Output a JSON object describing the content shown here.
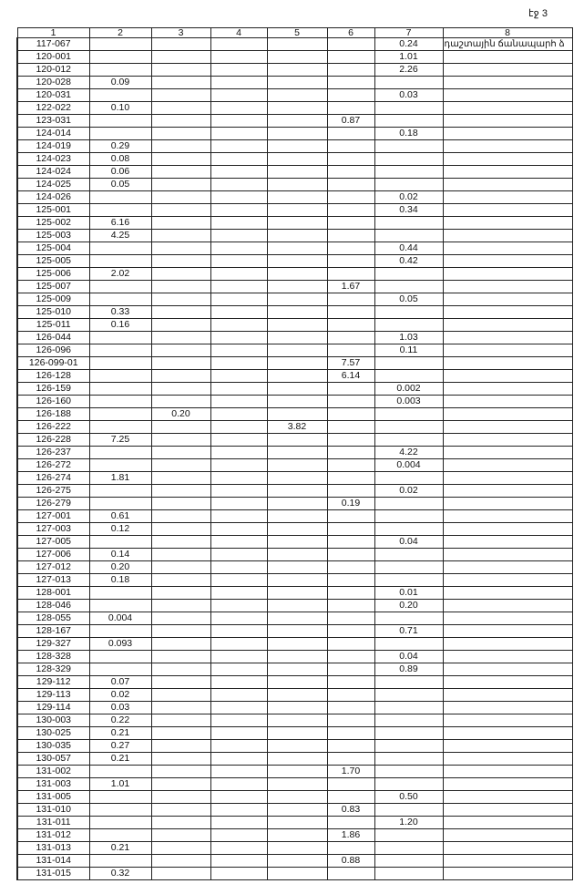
{
  "page_label": "էջ 3",
  "headers": [
    "1",
    "2",
    "3",
    "4",
    "5",
    "6",
    "7",
    "8"
  ],
  "rows": [
    [
      "117-067",
      "",
      "",
      "",
      "",
      "",
      "0.24",
      "դաշտային ճանապարհ ձ"
    ],
    [
      "120-001",
      "",
      "",
      "",
      "",
      "",
      "1.01",
      ""
    ],
    [
      "120-012",
      "",
      "",
      "",
      "",
      "",
      "2.26",
      ""
    ],
    [
      "120-028",
      "0.09",
      "",
      "",
      "",
      "",
      "",
      ""
    ],
    [
      "120-031",
      "",
      "",
      "",
      "",
      "",
      "0.03",
      ""
    ],
    [
      "122-022",
      "0.10",
      "",
      "",
      "",
      "",
      "",
      ""
    ],
    [
      "123-031",
      "",
      "",
      "",
      "",
      "0.87",
      "",
      ""
    ],
    [
      "124-014",
      "",
      "",
      "",
      "",
      "",
      "0.18",
      ""
    ],
    [
      "124-019",
      "0.29",
      "",
      "",
      "",
      "",
      "",
      ""
    ],
    [
      "124-023",
      "0.08",
      "",
      "",
      "",
      "",
      "",
      ""
    ],
    [
      "124-024",
      "0.06",
      "",
      "",
      "",
      "",
      "",
      ""
    ],
    [
      "124-025",
      "0.05",
      "",
      "",
      "",
      "",
      "",
      ""
    ],
    [
      "124-026",
      "",
      "",
      "",
      "",
      "",
      "0.02",
      ""
    ],
    [
      "125-001",
      "",
      "",
      "",
      "",
      "",
      "0.34",
      ""
    ],
    [
      "125-002",
      "6.16",
      "",
      "",
      "",
      "",
      "",
      ""
    ],
    [
      "125-003",
      "4.25",
      "",
      "",
      "",
      "",
      "",
      ""
    ],
    [
      "125-004",
      "",
      "",
      "",
      "",
      "",
      "0.44",
      ""
    ],
    [
      "125-005",
      "",
      "",
      "",
      "",
      "",
      "0.42",
      ""
    ],
    [
      "125-006",
      "2.02",
      "",
      "",
      "",
      "",
      "",
      ""
    ],
    [
      "125-007",
      "",
      "",
      "",
      "",
      "1.67",
      "",
      ""
    ],
    [
      "125-009",
      "",
      "",
      "",
      "",
      "",
      "0.05",
      ""
    ],
    [
      "125-010",
      "0.33",
      "",
      "",
      "",
      "",
      "",
      ""
    ],
    [
      "125-011",
      "0.16",
      "",
      "",
      "",
      "",
      "",
      ""
    ],
    [
      "126-044",
      "",
      "",
      "",
      "",
      "",
      "1.03",
      ""
    ],
    [
      "126-096",
      "",
      "",
      "",
      "",
      "",
      "0.11",
      ""
    ],
    [
      "126-099-01",
      "",
      "",
      "",
      "",
      "7.57",
      "",
      ""
    ],
    [
      "126-128",
      "",
      "",
      "",
      "",
      "6.14",
      "",
      ""
    ],
    [
      "126-159",
      "",
      "",
      "",
      "",
      "",
      "0.002",
      ""
    ],
    [
      "126-160",
      "",
      "",
      "",
      "",
      "",
      "0.003",
      ""
    ],
    [
      "126-188",
      "",
      "0.20",
      "",
      "",
      "",
      "",
      ""
    ],
    [
      "126-222",
      "",
      "",
      "",
      "3.82",
      "",
      "",
      ""
    ],
    [
      "126-228",
      "7.25",
      "",
      "",
      "",
      "",
      "",
      ""
    ],
    [
      "126-237",
      "",
      "",
      "",
      "",
      "",
      "4.22",
      ""
    ],
    [
      "126-272",
      "",
      "",
      "",
      "",
      "",
      "0.004",
      ""
    ],
    [
      "126-274",
      "1.81",
      "",
      "",
      "",
      "",
      "",
      ""
    ],
    [
      "126-275",
      "",
      "",
      "",
      "",
      "",
      "0.02",
      ""
    ],
    [
      "126-279",
      "",
      "",
      "",
      "",
      "0.19",
      "",
      ""
    ],
    [
      "127-001",
      "0.61",
      "",
      "",
      "",
      "",
      "",
      ""
    ],
    [
      "127-003",
      "0.12",
      "",
      "",
      "",
      "",
      "",
      ""
    ],
    [
      "127-005",
      "",
      "",
      "",
      "",
      "",
      "0.04",
      ""
    ],
    [
      "127-006",
      "0.14",
      "",
      "",
      "",
      "",
      "",
      ""
    ],
    [
      "127-012",
      "0.20",
      "",
      "",
      "",
      "",
      "",
      ""
    ],
    [
      "127-013",
      "0.18",
      "",
      "",
      "",
      "",
      "",
      ""
    ],
    [
      "128-001",
      "",
      "",
      "",
      "",
      "",
      "0.01",
      ""
    ],
    [
      "128-046",
      "",
      "",
      "",
      "",
      "",
      "0.20",
      ""
    ],
    [
      "128-055",
      "0.004",
      "",
      "",
      "",
      "",
      "",
      ""
    ],
    [
      "128-167",
      "",
      "",
      "",
      "",
      "",
      "0.71",
      ""
    ],
    [
      "129-327",
      "0.093",
      "",
      "",
      "",
      "",
      "",
      ""
    ],
    [
      "128-328",
      "",
      "",
      "",
      "",
      "",
      "0.04",
      ""
    ],
    [
      "128-329",
      "",
      "",
      "",
      "",
      "",
      "0.89",
      ""
    ],
    [
      "129-112",
      "0.07",
      "",
      "",
      "",
      "",
      "",
      ""
    ],
    [
      "129-113",
      "0.02",
      "",
      "",
      "",
      "",
      "",
      ""
    ],
    [
      "129-114",
      "0.03",
      "",
      "",
      "",
      "",
      "",
      ""
    ],
    [
      "130-003",
      "0.22",
      "",
      "",
      "",
      "",
      "",
      ""
    ],
    [
      "130-025",
      "0.21",
      "",
      "",
      "",
      "",
      "",
      ""
    ],
    [
      "130-035",
      "0.27",
      "",
      "",
      "",
      "",
      "",
      ""
    ],
    [
      "130-057",
      "0.21",
      "",
      "",
      "",
      "",
      "",
      ""
    ],
    [
      "131-002",
      "",
      "",
      "",
      "",
      "1.70",
      "",
      ""
    ],
    [
      "131-003",
      "1.01",
      "",
      "",
      "",
      "",
      "",
      ""
    ],
    [
      "131-005",
      "",
      "",
      "",
      "",
      "",
      "0.50",
      ""
    ],
    [
      "131-010",
      "",
      "",
      "",
      "",
      "0.83",
      "",
      ""
    ],
    [
      "131-011",
      "",
      "",
      "",
      "",
      "",
      "1.20",
      ""
    ],
    [
      "131-012",
      "",
      "",
      "",
      "",
      "1.86",
      "",
      ""
    ],
    [
      "131-013",
      "0.21",
      "",
      "",
      "",
      "",
      "",
      ""
    ],
    [
      "131-014",
      "",
      "",
      "",
      "",
      "0.88",
      "",
      ""
    ],
    [
      "131-015",
      "0.32",
      "",
      "",
      "",
      "",
      "",
      ""
    ]
  ]
}
